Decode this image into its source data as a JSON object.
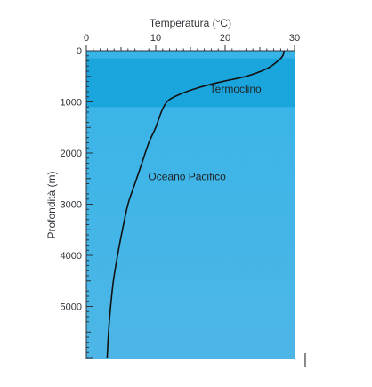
{
  "chart_data": {
    "type": "line",
    "title": "",
    "xlabel": "Temperatura (°C)",
    "ylabel": "Profondità (m)",
    "x_axis_position": "top",
    "y_axis_inverted": true,
    "xlim": [
      0,
      30
    ],
    "ylim": [
      0,
      6000
    ],
    "x_ticks": [
      0,
      10,
      20,
      30
    ],
    "y_ticks": [
      0,
      1000,
      2000,
      3000,
      4000,
      5000
    ],
    "grid": false,
    "bands": [
      {
        "label": "Termoclino",
        "from": 150,
        "to": 1100,
        "color": "#1aa6dd"
      }
    ],
    "annotations": [
      {
        "text": "Termoclino",
        "x": 21.5,
        "y": 820
      },
      {
        "text": "Oceano Pacifico",
        "x": 14.5,
        "y": 2530
      }
    ],
    "series": [
      {
        "color": "#111111",
        "points": [
          [
            28.5,
            0
          ],
          [
            28.3,
            100
          ],
          [
            27.6,
            200
          ],
          [
            26.0,
            350
          ],
          [
            23.0,
            500
          ],
          [
            19.0,
            620
          ],
          [
            15.5,
            750
          ],
          [
            13.0,
            880
          ],
          [
            11.6,
            1000
          ],
          [
            10.8,
            1200
          ],
          [
            10.0,
            1500
          ],
          [
            9.0,
            1800
          ],
          [
            8.0,
            2200
          ],
          [
            7.0,
            2600
          ],
          [
            6.0,
            3000
          ],
          [
            5.2,
            3500
          ],
          [
            4.5,
            4000
          ],
          [
            3.9,
            4500
          ],
          [
            3.5,
            5000
          ],
          [
            3.2,
            5500
          ],
          [
            3.0,
            6000
          ]
        ]
      }
    ]
  },
  "colors": {
    "ocean_light": "#37b4e8",
    "ocean_deep": "#4db6e6",
    "thermocline": "#1aa6dd",
    "axis": "#2f3338"
  }
}
